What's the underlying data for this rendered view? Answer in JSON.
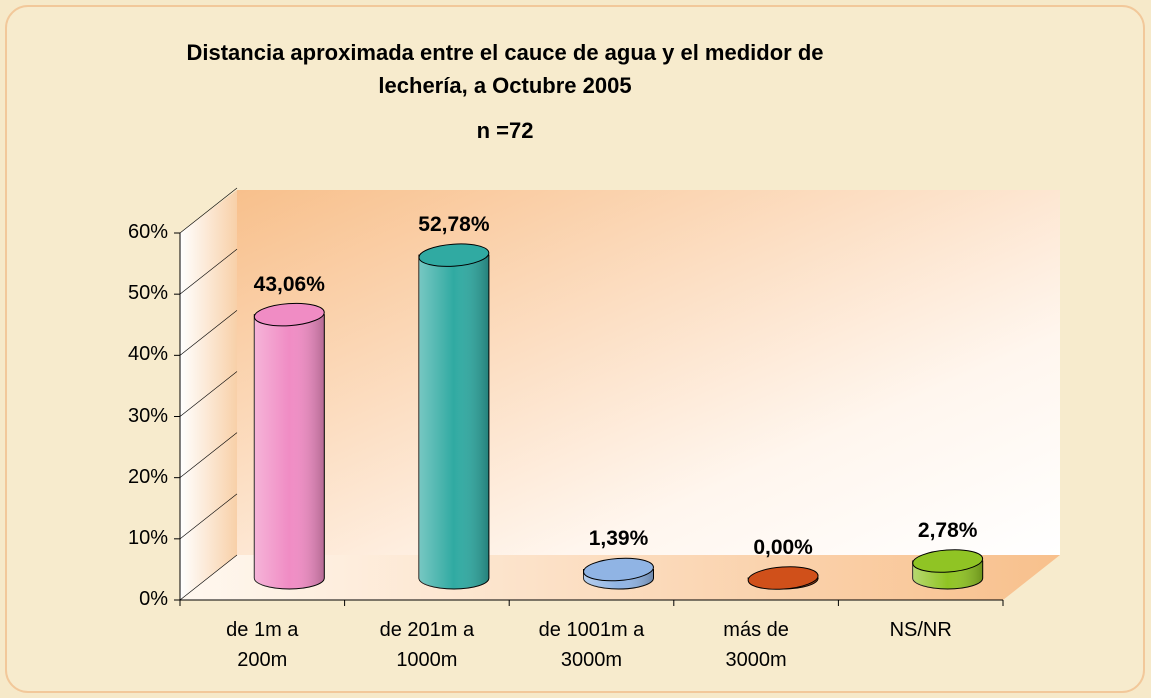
{
  "chart_data": {
    "type": "bar3d",
    "title": "Distancia aproximada entre el cauce de agua y el medidor de lechería, a Octubre 2005",
    "subtitle": "n =72",
    "categories": [
      "de 1m a 200m",
      "de 201m a 1000m",
      "de 1001m a 3000m",
      "más de 3000m",
      "NS/NR"
    ],
    "values": [
      43.06,
      52.78,
      1.39,
      0,
      2.78
    ],
    "value_labels": [
      "43,06%",
      "52,78%",
      "1,39%",
      "0,00%",
      "2,78%"
    ],
    "colors": [
      "#f08cc4",
      "#30aaa2",
      "#90b4e4",
      "#d0501a",
      "#90c424"
    ],
    "ylim": [
      0,
      60
    ],
    "yticks": [
      {
        "value": 0,
        "label": "0%"
      },
      {
        "value": 10,
        "label": "10%"
      },
      {
        "value": 20,
        "label": "20%"
      },
      {
        "value": 30,
        "label": "30%"
      },
      {
        "value": 40,
        "label": "40%"
      },
      {
        "value": 50,
        "label": "50%"
      },
      {
        "value": 60,
        "label": "60%"
      }
    ]
  }
}
